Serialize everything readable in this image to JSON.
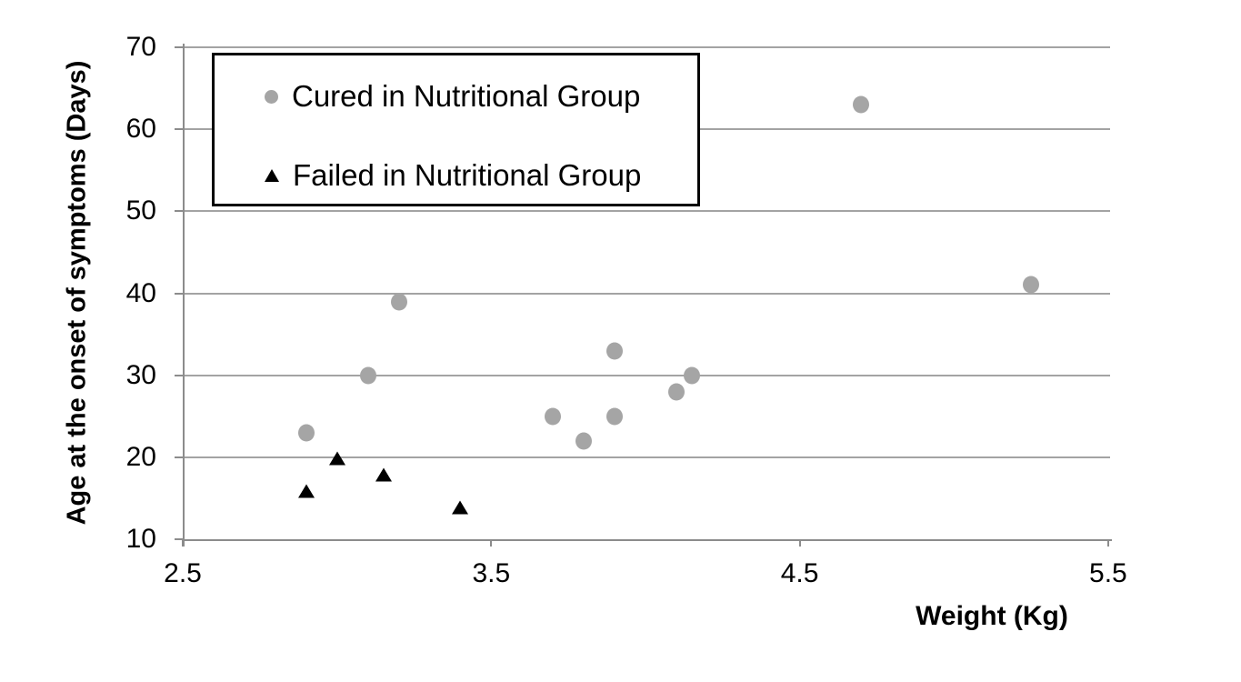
{
  "chart_data": {
    "type": "scatter",
    "title": "",
    "xlabel": "Weight (Kg)",
    "ylabel": "Age at the onset of symptoms (Days)",
    "xlim": [
      2.5,
      5.5
    ],
    "ylim": [
      10,
      70
    ],
    "x_ticks": [
      2.5,
      3.5,
      4.5,
      5.5
    ],
    "y_ticks": [
      70,
      60,
      50,
      40,
      30,
      20,
      10
    ],
    "grid": "horizontal-only",
    "legend_position": "top-left-inside",
    "colors": {
      "cured_marker": "#A5A5A5",
      "failed_marker": "#000000",
      "gridline": "#A3A3A3",
      "axis": "#8C8C8C",
      "background": "#FFFFFF",
      "legend_border": "#000000"
    },
    "series": [
      {
        "name": "Cured in Nutritional Group",
        "marker": "circle",
        "color": "#A5A5A5",
        "points": [
          [
            2.9,
            23
          ],
          [
            3.1,
            30
          ],
          [
            3.2,
            39
          ],
          [
            3.7,
            25
          ],
          [
            3.8,
            22
          ],
          [
            3.9,
            25
          ],
          [
            3.9,
            33
          ],
          [
            4.1,
            28
          ],
          [
            4.15,
            30
          ],
          [
            4.7,
            63
          ],
          [
            5.25,
            41
          ]
        ]
      },
      {
        "name": "Failed in Nutritional Group",
        "marker": "triangle",
        "color": "#000000",
        "points": [
          [
            2.9,
            16
          ],
          [
            3.0,
            20
          ],
          [
            3.15,
            18
          ],
          [
            3.4,
            14
          ]
        ]
      }
    ]
  }
}
